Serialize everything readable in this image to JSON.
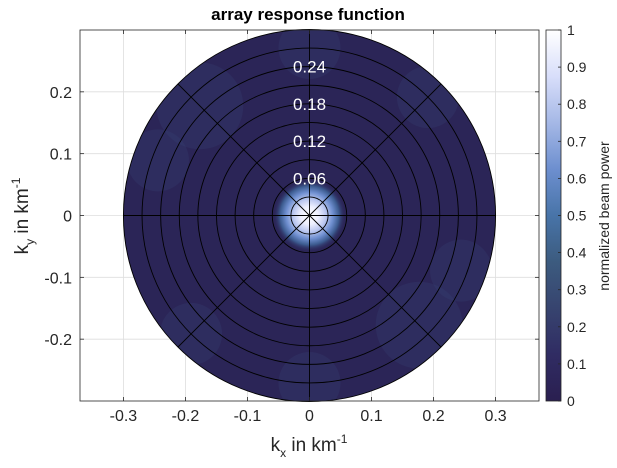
{
  "chart_data": {
    "type": "heatmap",
    "title": "array response function",
    "xlabel": {
      "base": "k",
      "sub": "x",
      "text": " in km",
      "sup": "-1"
    },
    "ylabel": {
      "base": "k",
      "sub": "y",
      "text": " in km",
      "sup": "-1"
    },
    "xlim": [
      -0.37,
      0.37
    ],
    "ylim": [
      -0.3,
      0.3
    ],
    "x_ticks": [
      {
        "value": -0.3,
        "label": "-0.3"
      },
      {
        "value": -0.2,
        "label": "-0.2"
      },
      {
        "value": -0.1,
        "label": "-0.1"
      },
      {
        "value": 0,
        "label": "0"
      },
      {
        "value": 0.1,
        "label": "0.1"
      },
      {
        "value": 0.2,
        "label": "0.2"
      },
      {
        "value": 0.3,
        "label": "0.3"
      }
    ],
    "y_ticks": [
      {
        "value": 0.2,
        "label": "0.2"
      },
      {
        "value": 0.1,
        "label": "0.1"
      },
      {
        "value": 0,
        "label": "0"
      },
      {
        "value": -0.1,
        "label": "-0.1"
      },
      {
        "value": -0.2,
        "label": "-0.2"
      }
    ],
    "grid": true,
    "domain_radius": 0.3,
    "polar_rings": [
      0.03,
      0.06,
      0.09,
      0.12,
      0.15,
      0.18,
      0.21,
      0.24,
      0.27,
      0.3
    ],
    "polar_spokes_deg": [
      0,
      45,
      90,
      135,
      180,
      225,
      270,
      315
    ],
    "ring_labels": [
      {
        "value": 0.06,
        "label": "0.06"
      },
      {
        "value": 0.12,
        "label": "0.12"
      },
      {
        "value": 0.18,
        "label": "0.18"
      },
      {
        "value": 0.24,
        "label": "0.24"
      }
    ],
    "main_lobe": {
      "center": [
        0,
        0
      ],
      "peak": 1.0,
      "half_width_km_inv": 0.04
    },
    "sidelobe_level": 0.12,
    "colorbar": {
      "label": "normalized beam power",
      "range": [
        0,
        1
      ],
      "ticks": [
        "0",
        "0.1",
        "0.2",
        "0.3",
        "0.4",
        "0.5",
        "0.6",
        "0.7",
        "0.8",
        "0.9",
        "1"
      ],
      "colormap_stops": [
        "#2a1f50",
        "#302c63",
        "#37446f",
        "#3c5b7f",
        "#4874a8",
        "#6d8fcf",
        "#a5b8e6",
        "#d8defa",
        "#ffffff"
      ]
    }
  }
}
